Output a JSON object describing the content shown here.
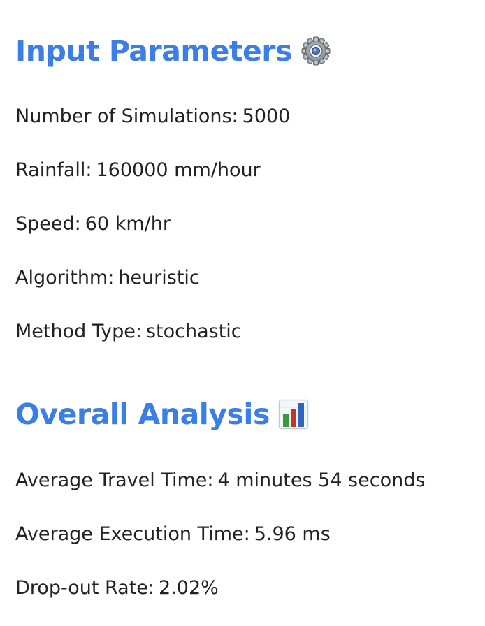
{
  "input_parameters": {
    "heading": "Input Parameters",
    "heading_icon": "gear-icon",
    "items": [
      {
        "label": "Number of Simulations:",
        "value": "5000"
      },
      {
        "label": "Rainfall:",
        "value": "160000 mm/hour"
      },
      {
        "label": "Speed:",
        "value": "60 km/hr"
      },
      {
        "label": "Algorithm:",
        "value": "heuristic"
      },
      {
        "label": "Method Type:",
        "value": "stochastic"
      }
    ]
  },
  "overall_analysis": {
    "heading": "Overall Analysis",
    "heading_icon": "bar-chart-icon",
    "items": [
      {
        "label": "Average Travel Time:",
        "value": "4 minutes 54 seconds"
      },
      {
        "label": "Average Execution Time:",
        "value": "5.96 ms"
      },
      {
        "label": "Drop-out Rate:",
        "value": "2.02%"
      }
    ]
  },
  "colors": {
    "heading": "#3b7fe6",
    "text": "#222222",
    "background": "#ffffff"
  }
}
